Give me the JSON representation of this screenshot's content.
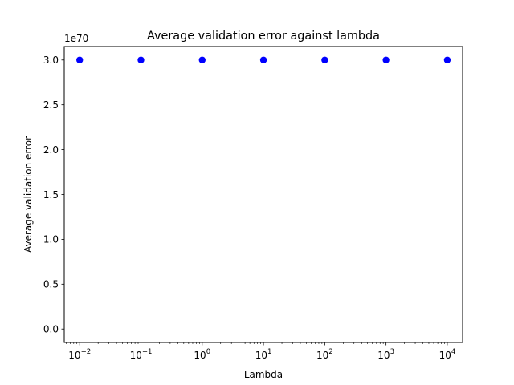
{
  "chart_data": {
    "type": "scatter",
    "title": "Average validation error against lambda",
    "xlabel": "Lambda",
    "ylabel": "Average validation error",
    "x_scale": "log",
    "y_offset_label": "1e70",
    "y_scale_factor": 1e+70,
    "xlim": [
      0.0056,
      17783
    ],
    "ylim": [
      -0.15,
      3.15
    ],
    "x_ticks": [
      {
        "value": 0.01,
        "base": "10",
        "exp": "−2"
      },
      {
        "value": 0.1,
        "base": "10",
        "exp": "−1"
      },
      {
        "value": 1,
        "base": "10",
        "exp": "0"
      },
      {
        "value": 10,
        "base": "10",
        "exp": "1"
      },
      {
        "value": 100,
        "base": "10",
        "exp": "2"
      },
      {
        "value": 1000,
        "base": "10",
        "exp": "3"
      },
      {
        "value": 10000,
        "base": "10",
        "exp": "4"
      }
    ],
    "y_ticks": [
      {
        "value": 0.0,
        "label": "0.0"
      },
      {
        "value": 0.5,
        "label": "0.5"
      },
      {
        "value": 1.0,
        "label": "1.0"
      },
      {
        "value": 1.5,
        "label": "1.5"
      },
      {
        "value": 2.0,
        "label": "2.0"
      },
      {
        "value": 2.5,
        "label": "2.5"
      },
      {
        "value": 3.0,
        "label": "3.0"
      }
    ],
    "series": [
      {
        "color": "#0000ff",
        "marker": "circle",
        "points": [
          {
            "x": 0.01,
            "y": 3e+70
          },
          {
            "x": 0.1,
            "y": 3e+70
          },
          {
            "x": 1,
            "y": 3e+70
          },
          {
            "x": 10,
            "y": 3e+70
          },
          {
            "x": 100,
            "y": 3e+70
          },
          {
            "x": 1000,
            "y": 3e+70
          },
          {
            "x": 10000,
            "y": 3e+70
          }
        ]
      }
    ],
    "grid": false,
    "legend": "none"
  }
}
